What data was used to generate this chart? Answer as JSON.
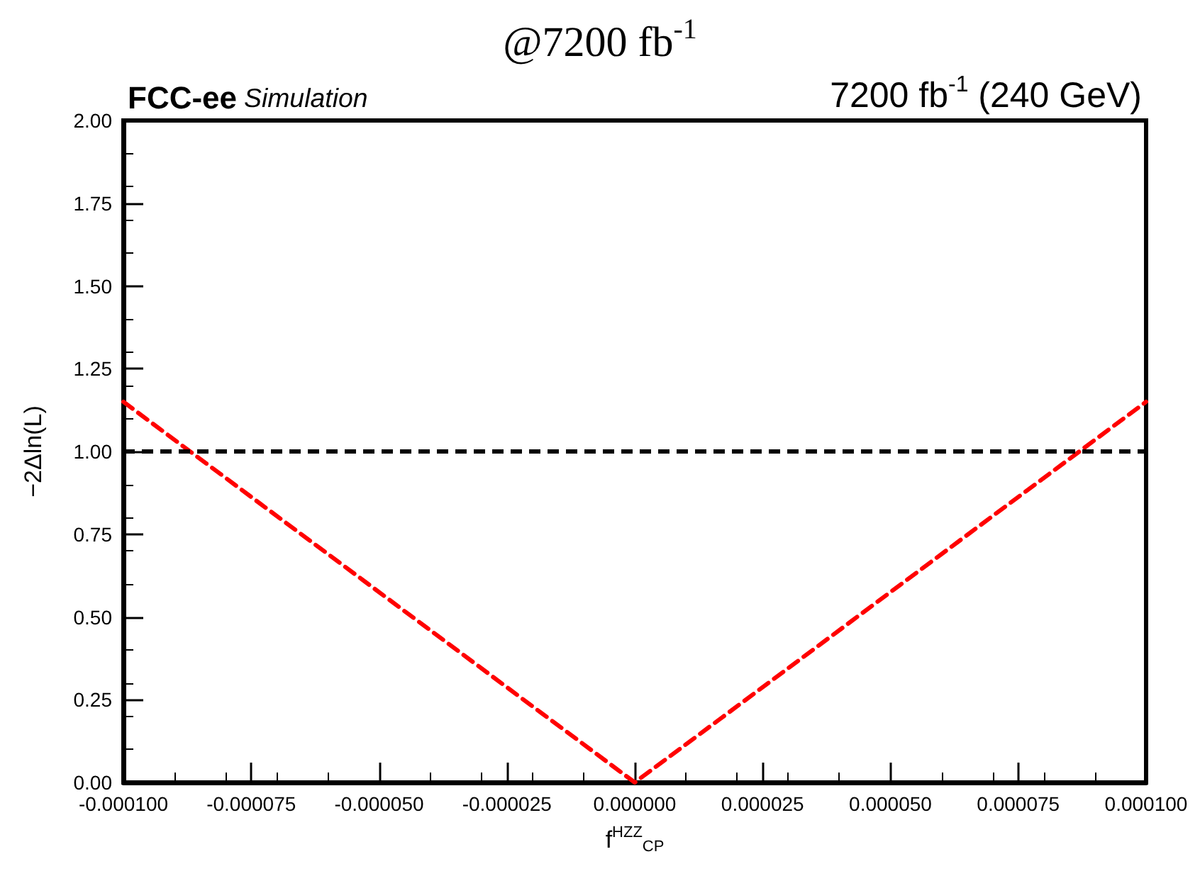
{
  "chart_data": {
    "type": "line",
    "title": "@7200 fb$^{-1}$",
    "annotations": [
      "FCC-ee Simulation",
      "7200 fb$^{-1}$ (240 GeV)"
    ],
    "xlabel": "f$^{HZZ}$$_{CP}$",
    "ylabel": "−2Δln(L)",
    "series": [
      {
        "color": "#ff0000",
        "x": [
          -0.0001,
          0,
          0.0001
        ],
        "values": [
          1.15,
          0,
          1.15
        ]
      }
    ],
    "line_style": "dashed",
    "marker": "none",
    "xlim": [
      -0.0001,
      0.0001
    ],
    "xticks": [
      {
        "value": -0.0001,
        "label": "-0.000100"
      },
      {
        "value": -7.5e-05,
        "label": "-0.000075"
      },
      {
        "value": -5e-05,
        "label": "-0.000050"
      },
      {
        "value": -2.5e-05,
        "label": "-0.000025"
      },
      {
        "value": 0,
        "label": "0.000000"
      },
      {
        "value": 2.5e-05,
        "label": "0.000025"
      },
      {
        "value": 5e-05,
        "label": "0.000050"
      },
      {
        "value": 7.5e-05,
        "label": "0.000075"
      },
      {
        "value": 0.0001,
        "label": "0.000100"
      }
    ],
    "ylim": [
      0,
      2
    ],
    "yticks": [
      {
        "value": 0,
        "label": "0.00"
      },
      {
        "value": 0.25,
        "label": "0.25"
      },
      {
        "value": 0.5,
        "label": "0.50"
      },
      {
        "value": 0.75,
        "label": "0.75"
      },
      {
        "value": 1,
        "label": "1.00"
      },
      {
        "value": 1.25,
        "label": "1.25"
      },
      {
        "value": 1.5,
        "label": "1.50"
      },
      {
        "value": 1.75,
        "label": "1.75"
      },
      {
        "value": 2,
        "label": "2.00"
      }
    ],
    "ref_lines": [
      {
        "axis": "y",
        "value": 1,
        "color": "#000000",
        "line_style": "dashed"
      }
    ]
  }
}
